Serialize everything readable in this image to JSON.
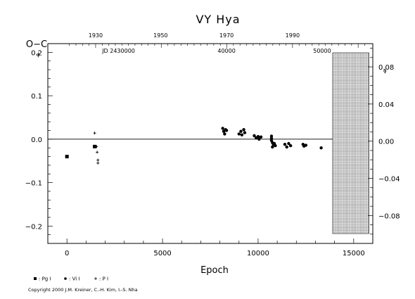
{
  "chart_data": {
    "type": "scatter",
    "title": "VY  Hya",
    "xlabel": "Epoch",
    "ylabel": "O−C",
    "xlim": [
      -1000,
      16000
    ],
    "ylim": [
      -0.24,
      0.22
    ],
    "y2lim": [
      -0.11,
      0.105
    ],
    "x_ticks": [
      0,
      5000,
      10000,
      15000
    ],
    "x_tick_labels": [
      "0",
      "5000",
      "10000",
      "15000"
    ],
    "y_ticks": [
      -0.2,
      -0.1,
      0.0,
      0.1,
      0.2
    ],
    "y_tick_labels": [
      "−0.2",
      "−0.1",
      "0.0",
      "0.1",
      "0.2"
    ],
    "y2_ticks": [
      -0.08,
      -0.04,
      0.0,
      0.04,
      0.08
    ],
    "y2_tick_labels": [
      "−0.08",
      "−0.04",
      "0.00",
      "0.04",
      "0.08"
    ],
    "top_axis": {
      "year_ticks": [
        1930,
        1950,
        1970,
        1990
      ],
      "year_tick_epochs": [
        1500,
        4900,
        8350,
        11800
      ],
      "jd_labels": [
        "JD 2430000",
        "40000",
        "50000"
      ],
      "jd_label_epochs": [
        2700,
        8350,
        13350
      ]
    },
    "small_labels": [
      "ϕ",
      "ϕ"
    ],
    "hatched_region_x": [
      13900,
      15800
    ],
    "series": [
      {
        "marker": "square",
        "legend": ": Pg I",
        "points": [
          [
            0,
            -0.04
          ],
          [
            1450,
            -0.017
          ]
        ]
      },
      {
        "marker": "circle",
        "legend": ": Vi I",
        "points": [
          [
            8150,
            0.025
          ],
          [
            8200,
            0.018
          ],
          [
            8250,
            0.012
          ],
          [
            8300,
            0.022
          ],
          [
            8350,
            0.02
          ],
          [
            9000,
            0.012
          ],
          [
            9100,
            0.018
          ],
          [
            9150,
            0.01
          ],
          [
            9250,
            0.022
          ],
          [
            9300,
            0.015
          ],
          [
            9800,
            0.008
          ],
          [
            9900,
            0.003
          ],
          [
            10000,
            0.006
          ],
          [
            10050,
            0.0
          ],
          [
            10150,
            0.005
          ],
          [
            10700,
            0.002
          ],
          [
            10700,
            -0.003
          ],
          [
            10750,
            -0.008
          ],
          [
            10800,
            -0.012
          ],
          [
            10750,
            -0.018
          ],
          [
            10850,
            -0.01
          ],
          [
            10900,
            -0.015
          ],
          [
            10700,
            0.007
          ],
          [
            11400,
            -0.012
          ],
          [
            11500,
            -0.018
          ],
          [
            11600,
            -0.01
          ],
          [
            11700,
            -0.015
          ],
          [
            12350,
            -0.012
          ],
          [
            12400,
            -0.016
          ],
          [
            12500,
            -0.014
          ],
          [
            13300,
            -0.02
          ]
        ]
      },
      {
        "marker": "plus",
        "legend": ": P I",
        "points": [
          [
            1450,
            0.014
          ],
          [
            1550,
            -0.017
          ],
          [
            1580,
            -0.03
          ],
          [
            1620,
            -0.048
          ],
          [
            1620,
            -0.055
          ]
        ]
      }
    ]
  },
  "copyright": "Copyright 2000 J.M. Kreiner, C.-H. Kim, I.-S. Nha"
}
